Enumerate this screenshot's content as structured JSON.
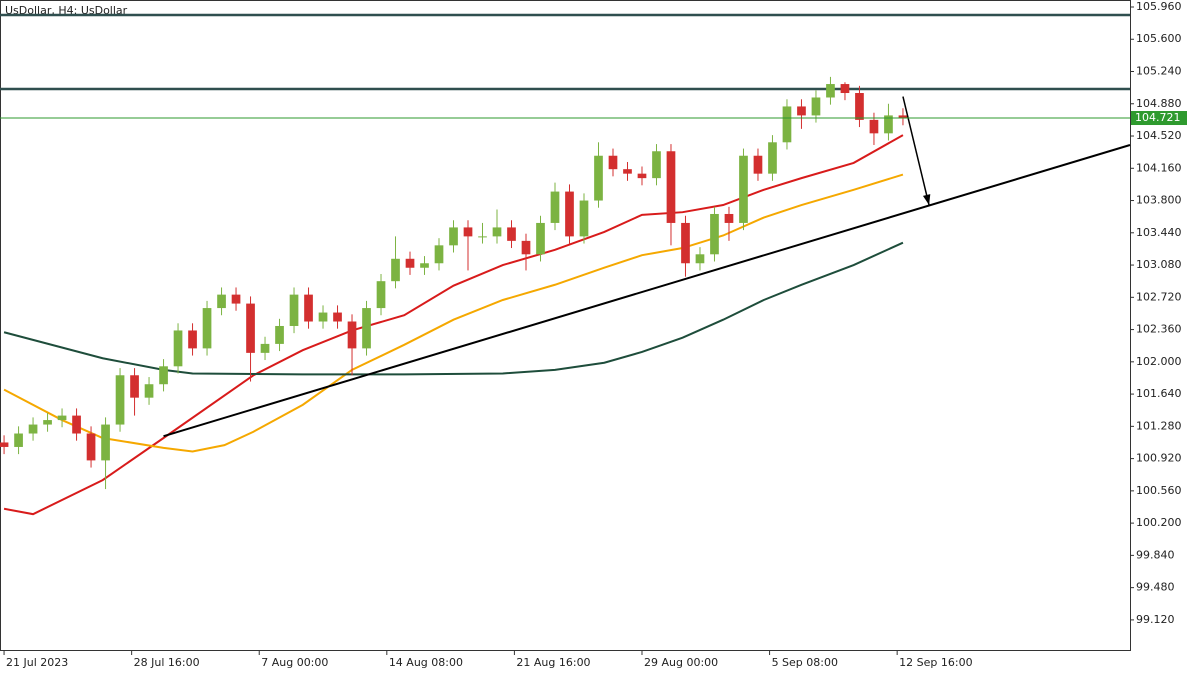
{
  "chart_data": {
    "type": "candlestick",
    "title": "UsDollar, H4:  UsDollar",
    "up_color": "#7cb342",
    "down_color": "#d32f2f",
    "x": [
      0,
      5,
      10,
      15,
      20,
      25,
      30,
      35,
      40,
      45,
      50,
      55,
      60,
      65,
      70,
      75,
      80,
      85,
      90,
      95,
      100,
      105,
      110,
      115,
      120,
      125,
      130,
      135,
      140,
      145,
      150,
      155,
      160,
      165,
      170,
      175,
      180,
      185,
      190,
      195,
      200,
      205,
      210,
      215,
      220,
      225,
      230,
      235,
      240,
      245,
      250,
      255,
      260,
      265,
      270,
      275,
      280,
      285,
      290,
      295,
      300,
      305,
      310
    ],
    "open": [
      101.1,
      101.05,
      101.2,
      101.3,
      101.35,
      101.4,
      101.2,
      100.9,
      101.3,
      101.85,
      101.6,
      101.75,
      101.95,
      102.35,
      102.15,
      102.6,
      102.75,
      102.65,
      102.1,
      102.2,
      102.4,
      102.75,
      102.45,
      102.55,
      102.45,
      102.15,
      102.6,
      102.9,
      103.15,
      103.05,
      103.1,
      103.3,
      103.5,
      103.4,
      103.4,
      103.5,
      103.35,
      103.2,
      103.55,
      103.9,
      103.4,
      103.8,
      104.3,
      104.15,
      104.1,
      104.05,
      104.35,
      103.55,
      103.1,
      103.2,
      103.65,
      103.55,
      104.3,
      104.1,
      104.45,
      104.85,
      104.75,
      104.95,
      105.1,
      105.0,
      104.7,
      104.55,
      104.75
    ],
    "high": [
      101.18,
      101.28,
      101.38,
      101.43,
      101.48,
      101.48,
      101.28,
      101.38,
      101.93,
      101.93,
      101.83,
      102.03,
      102.43,
      102.43,
      102.68,
      102.83,
      102.83,
      102.73,
      102.28,
      102.48,
      102.83,
      102.83,
      102.63,
      102.63,
      102.53,
      102.68,
      102.98,
      103.4,
      103.23,
      103.18,
      103.38,
      103.58,
      103.58,
      103.55,
      103.7,
      103.58,
      103.43,
      103.63,
      104.0,
      103.98,
      103.88,
      104.45,
      104.38,
      104.23,
      104.18,
      104.43,
      104.43,
      103.63,
      103.28,
      103.73,
      103.73,
      104.38,
      104.38,
      104.53,
      104.93,
      104.93,
      105.03,
      105.18,
      105.12,
      105.08,
      104.78,
      104.88,
      104.83
    ],
    "low": [
      100.97,
      100.97,
      101.12,
      101.22,
      101.27,
      101.12,
      100.82,
      100.58,
      101.22,
      101.4,
      101.52,
      101.67,
      101.87,
      102.07,
      102.07,
      102.52,
      102.57,
      101.78,
      102.02,
      102.12,
      102.32,
      102.37,
      102.37,
      102.37,
      101.85,
      102.07,
      102.52,
      102.82,
      102.97,
      102.97,
      103.02,
      103.22,
      103.02,
      103.32,
      103.32,
      103.27,
      103.02,
      103.12,
      103.47,
      103.32,
      103.32,
      103.72,
      104.07,
      104.02,
      103.97,
      103.97,
      103.3,
      102.95,
      103.02,
      103.12,
      103.35,
      103.47,
      104.02,
      104.02,
      104.37,
      104.6,
      104.67,
      104.87,
      104.92,
      104.62,
      104.42,
      104.47,
      104.64
    ],
    "close": [
      101.05,
      101.2,
      101.3,
      101.35,
      101.4,
      101.2,
      100.9,
      101.3,
      101.85,
      101.6,
      101.75,
      101.95,
      102.35,
      102.15,
      102.6,
      102.75,
      102.65,
      102.1,
      102.2,
      102.4,
      102.75,
      102.45,
      102.55,
      102.45,
      102.15,
      102.6,
      102.9,
      103.15,
      103.05,
      103.1,
      103.3,
      103.5,
      103.4,
      103.4,
      103.5,
      103.35,
      103.2,
      103.55,
      103.9,
      103.4,
      103.8,
      104.3,
      104.15,
      104.1,
      104.05,
      104.35,
      103.55,
      103.1,
      103.2,
      103.65,
      103.55,
      104.3,
      104.1,
      104.45,
      104.85,
      104.75,
      104.95,
      105.1,
      105.0,
      104.7,
      104.55,
      104.75,
      104.72
    ],
    "lines": [
      {
        "color": "#d81b1b",
        "x": [
          0,
          10,
          34,
          55,
          86,
          103,
          120,
          138,
          155,
          172,
          190,
          207,
          220,
          234,
          248,
          262,
          275,
          293,
          310
        ],
        "values": [
          100.36,
          100.3,
          100.68,
          101.15,
          101.85,
          102.13,
          102.35,
          102.52,
          102.85,
          103.08,
          103.25,
          103.45,
          103.64,
          103.67,
          103.75,
          103.92,
          104.05,
          104.22,
          104.53
        ]
      },
      {
        "color": "#f5a800",
        "x": [
          0,
          20,
          34,
          55,
          65,
          76,
          86,
          103,
          120,
          138,
          155,
          172,
          190,
          207,
          220,
          234,
          248,
          262,
          275,
          293,
          310
        ],
        "values": [
          101.69,
          101.35,
          101.15,
          101.04,
          101.0,
          101.07,
          101.22,
          101.52,
          101.91,
          102.19,
          102.47,
          102.69,
          102.86,
          103.05,
          103.19,
          103.27,
          103.41,
          103.61,
          103.75,
          103.92,
          104.09
        ]
      },
      {
        "color": "#1e4d3b",
        "x": [
          0,
          34,
          55,
          65,
          103,
          138,
          172,
          190,
          207,
          220,
          234,
          248,
          262,
          275,
          293,
          310
        ],
        "values": [
          102.33,
          102.04,
          101.91,
          101.87,
          101.86,
          101.86,
          101.87,
          101.91,
          101.99,
          102.11,
          102.27,
          102.47,
          102.69,
          102.86,
          103.08,
          103.33
        ]
      }
    ],
    "levels": [
      {
        "value": 105.87,
        "color": "#2f4f4f"
      },
      {
        "value": 105.045,
        "color": "#2f4f4f"
      }
    ],
    "current_price": {
      "value": 104.721,
      "color": "#2e9a2e"
    },
    "trendline": {
      "color": "#000000",
      "x": [
        55,
        388.3
      ],
      "values": [
        101.17,
        104.42
      ]
    },
    "arrow": {
      "color": "#000000",
      "x": [
        310,
        319
      ],
      "values": [
        104.96,
        103.75
      ]
    },
    "xlim": [
      -1.4,
      388.3
    ],
    "ylim": [
      98.784,
      106.038
    ],
    "xticks": [
      {
        "value": 0,
        "label": "21 Jul 2023"
      },
      {
        "value": 44,
        "label": "28 Jul 16:00"
      },
      {
        "value": 88,
        "label": "7 Aug 00:00"
      },
      {
        "value": 132,
        "label": "14 Aug 08:00"
      },
      {
        "value": 176,
        "label": "21 Aug 16:00"
      },
      {
        "value": 220,
        "label": "29 Aug 00:00"
      },
      {
        "value": 264,
        "label": "5 Sep 08:00"
      },
      {
        "value": 308,
        "label": "12 Sep 16:00"
      }
    ],
    "yticks": [
      {
        "value": 105.96,
        "label": "105.960"
      },
      {
        "value": 105.6,
        "label": "105.600"
      },
      {
        "value": 105.24,
        "label": "105.240"
      },
      {
        "value": 104.88,
        "label": "104.880"
      },
      {
        "value": 104.52,
        "label": "104.520"
      },
      {
        "value": 104.16,
        "label": "104.160"
      },
      {
        "value": 103.8,
        "label": "103.800"
      },
      {
        "value": 103.44,
        "label": "103.440"
      },
      {
        "value": 103.08,
        "label": "103.080"
      },
      {
        "value": 102.72,
        "label": "102.720"
      },
      {
        "value": 102.36,
        "label": "102.360"
      },
      {
        "value": 102.0,
        "label": "102.000"
      },
      {
        "value": 101.64,
        "label": "101.640"
      },
      {
        "value": 101.28,
        "label": "101.280"
      },
      {
        "value": 100.92,
        "label": "100.920"
      },
      {
        "value": 100.56,
        "label": "100.560"
      },
      {
        "value": 100.2,
        "label": "100.200"
      },
      {
        "value": 99.84,
        "label": "99.840"
      },
      {
        "value": 99.48,
        "label": "99.480"
      },
      {
        "value": 99.12,
        "label": "99.120"
      }
    ]
  }
}
